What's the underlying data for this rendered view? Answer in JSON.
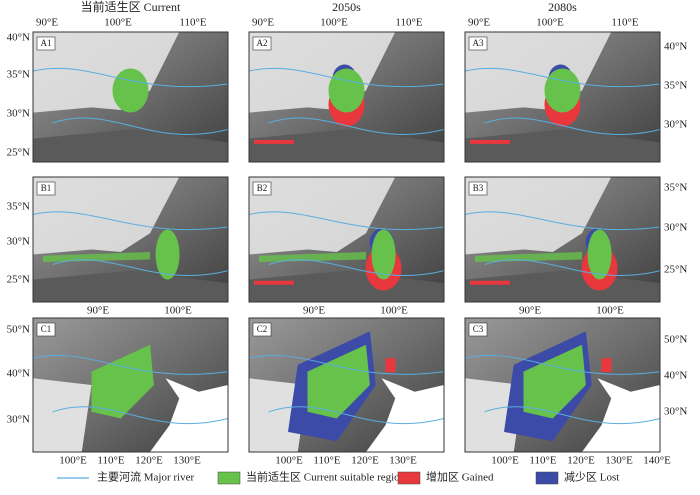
{
  "columns": [
    "当前适生区 Current",
    "2050s",
    "2080s"
  ],
  "panels": [
    [
      "A1",
      "A2",
      "A3"
    ],
    [
      "B1",
      "B2",
      "B3"
    ],
    [
      "C1",
      "C2",
      "C3"
    ]
  ],
  "top_axis": [
    "90°E",
    "100°E",
    "110°E"
  ],
  "row_a_left": [
    "40°N",
    "35°N",
    "30°N",
    "25°N"
  ],
  "row_a_right": [
    "40°N",
    "35°N",
    "30°N"
  ],
  "row_b_left": [
    "35°N",
    "30°N",
    "25°N"
  ],
  "row_b_right": [
    "35°N",
    "30°N",
    "25°N"
  ],
  "middle_axis": [
    "90°E",
    "100°E"
  ],
  "row_c_left": [
    "50°N",
    "40°N",
    "30°N"
  ],
  "row_c_right": [
    "50°N",
    "40°N",
    "30°N"
  ],
  "bottom_axis": [
    "100°E",
    "110°E",
    "120°E",
    "130°E",
    "140°E"
  ],
  "legend": [
    {
      "label": "主要河流 Major river",
      "color": "#5aaee0"
    },
    {
      "label": "当前适生区 Current suitable region",
      "color": "#66c24a"
    },
    {
      "label": "增加区 Gained",
      "color": "#e8383d"
    },
    {
      "label": "减少区 Lost",
      "color": "#3c4aa8"
    }
  ]
}
